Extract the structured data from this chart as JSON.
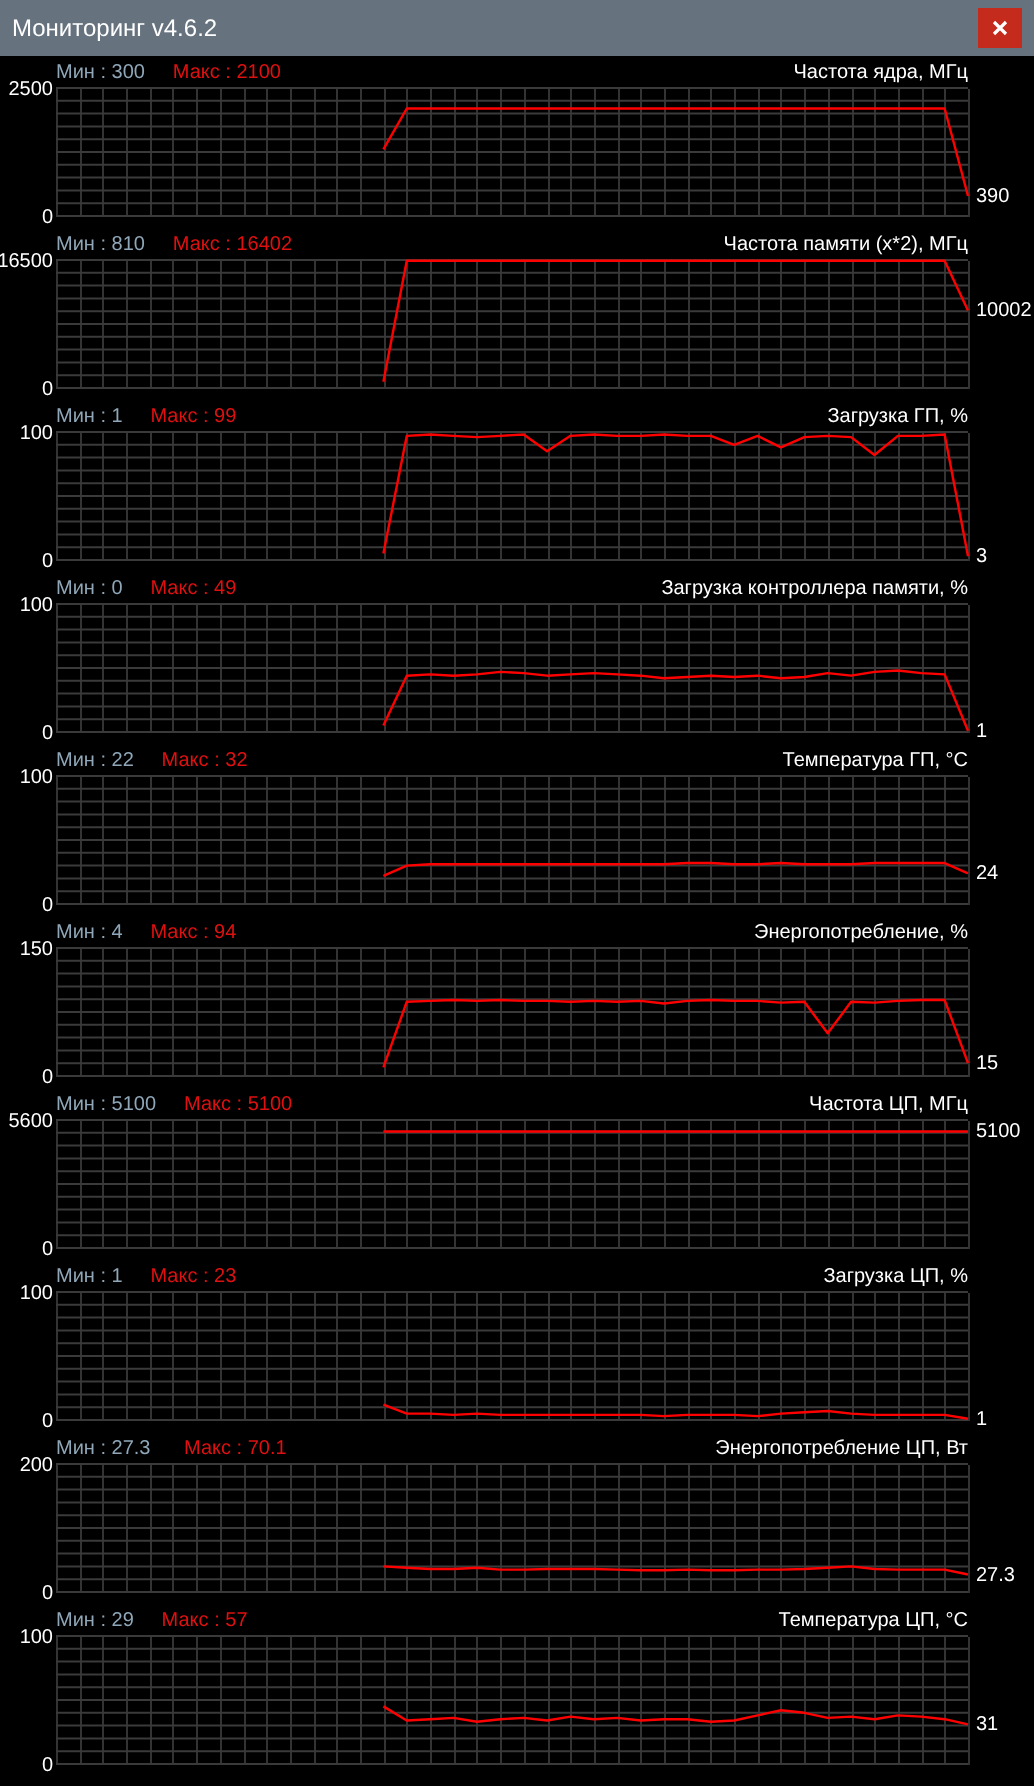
{
  "chart_data": [
    {
      "type": "other",
      "title": "Мониторинг v4.6.2"
    },
    {
      "type": "line",
      "title": "Частота ядра, МГц",
      "categories": [
        null,
        null,
        null,
        null,
        null,
        null,
        null,
        null,
        null,
        null,
        null,
        null,
        null,
        null,
        null,
        null,
        null,
        null,
        null,
        null,
        null,
        null,
        null,
        null,
        null,
        null,
        null,
        null,
        null,
        null,
        null,
        null,
        null,
        null,
        null,
        null,
        null,
        null,
        null,
        null
      ],
      "series": [
        {
          "color": "#ff0000",
          "values": [
            null,
            null,
            null,
            null,
            null,
            null,
            null,
            null,
            null,
            null,
            null,
            null,
            null,
            null,
            1300,
            2100,
            2100,
            2100,
            2100,
            2100,
            2100,
            2100,
            2100,
            2100,
            2100,
            2100,
            2100,
            2100,
            2100,
            2100,
            2100,
            2100,
            2100,
            2100,
            2100,
            2100,
            2100,
            2100,
            2100,
            390
          ]
        }
      ],
      "ylim": [
        0,
        2500
      ],
      "yticks": [
        0,
        {
          "value": 250,
          "label": null
        },
        {
          "value": 500,
          "label": null
        },
        {
          "value": 750,
          "label": null
        },
        {
          "value": 1000,
          "label": null
        },
        {
          "value": 1250,
          "label": null
        },
        {
          "value": 1500,
          "label": null
        },
        {
          "value": 1750,
          "label": null
        },
        {
          "value": 2000,
          "label": null
        },
        {
          "value": 2250,
          "label": null
        },
        2500
      ],
      "grid": true,
      "tick_labels": "y",
      "annotations": [
        "Мин : 300",
        "Макс : 2100",
        "390"
      ]
    },
    {
      "type": "line",
      "title": "Частота памяти (x*2), МГц",
      "categories": [
        null,
        null,
        null,
        null,
        null,
        null,
        null,
        null,
        null,
        null,
        null,
        null,
        null,
        null,
        null,
        null,
        null,
        null,
        null,
        null,
        null,
        null,
        null,
        null,
        null,
        null,
        null,
        null,
        null,
        null,
        null,
        null,
        null,
        null,
        null,
        null,
        null,
        null,
        null,
        null
      ],
      "series": [
        {
          "color": "#ff0000",
          "values": [
            null,
            null,
            null,
            null,
            null,
            null,
            null,
            null,
            null,
            null,
            null,
            null,
            null,
            null,
            810,
            16402,
            16402,
            16402,
            16402,
            16402,
            16402,
            16402,
            16402,
            16402,
            16402,
            16402,
            16402,
            16402,
            16402,
            16402,
            16402,
            16402,
            16402,
            16402,
            16402,
            16402,
            16402,
            16402,
            16402,
            10002
          ]
        }
      ],
      "ylim": [
        0,
        16500
      ],
      "yticks": [
        0,
        {
          "value": 1650,
          "label": null
        },
        {
          "value": 3300,
          "label": null
        },
        {
          "value": 4950,
          "label": null
        },
        {
          "value": 6600,
          "label": null
        },
        {
          "value": 8250,
          "label": null
        },
        {
          "value": 9900,
          "label": null
        },
        {
          "value": 11550,
          "label": null
        },
        {
          "value": 13200,
          "label": null
        },
        {
          "value": 14850,
          "label": null
        },
        16500
      ],
      "grid": true,
      "tick_labels": "y",
      "annotations": [
        "Мин : 810",
        "Макс : 16402",
        "10002"
      ]
    },
    {
      "type": "line",
      "title": "Загрузка ГП, %",
      "categories": [
        null,
        null,
        null,
        null,
        null,
        null,
        null,
        null,
        null,
        null,
        null,
        null,
        null,
        null,
        null,
        null,
        null,
        null,
        null,
        null,
        null,
        null,
        null,
        null,
        null,
        null,
        null,
        null,
        null,
        null,
        null,
        null,
        null,
        null,
        null,
        null,
        null,
        null,
        null,
        null
      ],
      "series": [
        {
          "color": "#ff0000",
          "values": [
            null,
            null,
            null,
            null,
            null,
            null,
            null,
            null,
            null,
            null,
            null,
            null,
            null,
            null,
            5,
            97,
            98,
            97,
            96,
            97,
            98,
            85,
            97,
            98,
            97,
            97,
            98,
            97,
            97,
            90,
            97,
            88,
            96,
            97,
            96,
            82,
            97,
            97,
            98,
            3
          ]
        }
      ],
      "ylim": [
        0,
        100
      ],
      "yticks": [
        0,
        {
          "value": 10,
          "label": null
        },
        {
          "value": 20,
          "label": null
        },
        {
          "value": 30,
          "label": null
        },
        {
          "value": 40,
          "label": null
        },
        {
          "value": 50,
          "label": null
        },
        {
          "value": 60,
          "label": null
        },
        {
          "value": 70,
          "label": null
        },
        {
          "value": 80,
          "label": null
        },
        {
          "value": 90,
          "label": null
        },
        100
      ],
      "grid": true,
      "tick_labels": "y",
      "annotations": [
        "Мин : 1",
        "Макс : 99",
        "3"
      ]
    },
    {
      "type": "line",
      "title": "Загрузка контроллера памяти, %",
      "categories": [
        null,
        null,
        null,
        null,
        null,
        null,
        null,
        null,
        null,
        null,
        null,
        null,
        null,
        null,
        null,
        null,
        null,
        null,
        null,
        null,
        null,
        null,
        null,
        null,
        null,
        null,
        null,
        null,
        null,
        null,
        null,
        null,
        null,
        null,
        null,
        null,
        null,
        null,
        null,
        null
      ],
      "series": [
        {
          "color": "#ff0000",
          "values": [
            null,
            null,
            null,
            null,
            null,
            null,
            null,
            null,
            null,
            null,
            null,
            null,
            null,
            null,
            5,
            44,
            45,
            44,
            45,
            47,
            46,
            44,
            45,
            46,
            45,
            44,
            42,
            43,
            44,
            43,
            44,
            42,
            43,
            46,
            44,
            47,
            48,
            46,
            45,
            1
          ]
        }
      ],
      "ylim": [
        0,
        100
      ],
      "yticks": [
        0,
        {
          "value": 10,
          "label": null
        },
        {
          "value": 20,
          "label": null
        },
        {
          "value": 30,
          "label": null
        },
        {
          "value": 40,
          "label": null
        },
        {
          "value": 50,
          "label": null
        },
        {
          "value": 60,
          "label": null
        },
        {
          "value": 70,
          "label": null
        },
        {
          "value": 80,
          "label": null
        },
        {
          "value": 90,
          "label": null
        },
        100
      ],
      "grid": true,
      "tick_labels": "y",
      "annotations": [
        "Мин : 0",
        "Макс : 49",
        "1"
      ]
    },
    {
      "type": "line",
      "title": "Температура ГП, °C",
      "categories": [
        null,
        null,
        null,
        null,
        null,
        null,
        null,
        null,
        null,
        null,
        null,
        null,
        null,
        null,
        null,
        null,
        null,
        null,
        null,
        null,
        null,
        null,
        null,
        null,
        null,
        null,
        null,
        null,
        null,
        null,
        null,
        null,
        null,
        null,
        null,
        null,
        null,
        null,
        null,
        null
      ],
      "series": [
        {
          "color": "#ff0000",
          "values": [
            null,
            null,
            null,
            null,
            null,
            null,
            null,
            null,
            null,
            null,
            null,
            null,
            null,
            null,
            22,
            30,
            31,
            31,
            31,
            31,
            31,
            31,
            31,
            31,
            31,
            31,
            31,
            32,
            32,
            31,
            31,
            32,
            31,
            31,
            31,
            32,
            32,
            32,
            32,
            24
          ]
        }
      ],
      "ylim": [
        0,
        100
      ],
      "yticks": [
        0,
        {
          "value": 10,
          "label": null
        },
        {
          "value": 20,
          "label": null
        },
        {
          "value": 30,
          "label": null
        },
        {
          "value": 40,
          "label": null
        },
        {
          "value": 50,
          "label": null
        },
        {
          "value": 60,
          "label": null
        },
        {
          "value": 70,
          "label": null
        },
        {
          "value": 80,
          "label": null
        },
        {
          "value": 90,
          "label": null
        },
        100
      ],
      "grid": true,
      "tick_labels": "y",
      "annotations": [
        "Мин : 22",
        "Макс : 32",
        "24"
      ]
    },
    {
      "type": "line",
      "title": "Энергопотребление, %",
      "categories": [
        null,
        null,
        null,
        null,
        null,
        null,
        null,
        null,
        null,
        null,
        null,
        null,
        null,
        null,
        null,
        null,
        null,
        null,
        null,
        null,
        null,
        null,
        null,
        null,
        null,
        null,
        null,
        null,
        null,
        null,
        null,
        null,
        null,
        null,
        null,
        null,
        null,
        null,
        null,
        null
      ],
      "series": [
        {
          "color": "#ff0000",
          "values": [
            null,
            null,
            null,
            null,
            null,
            null,
            null,
            null,
            null,
            null,
            null,
            null,
            null,
            null,
            10,
            87,
            88,
            89,
            88,
            89,
            88,
            88,
            87,
            88,
            87,
            88,
            85,
            88,
            89,
            88,
            88,
            86,
            87,
            50,
            87,
            86,
            88,
            89,
            89,
            15
          ]
        }
      ],
      "ylim": [
        0,
        150
      ],
      "yticks": [
        0,
        {
          "value": 15,
          "label": null
        },
        {
          "value": 30,
          "label": null
        },
        {
          "value": 45,
          "label": null
        },
        {
          "value": 60,
          "label": null
        },
        {
          "value": 75,
          "label": null
        },
        {
          "value": 90,
          "label": null
        },
        {
          "value": 105,
          "label": null
        },
        {
          "value": 120,
          "label": null
        },
        {
          "value": 135,
          "label": null
        },
        150
      ],
      "grid": true,
      "tick_labels": "y",
      "annotations": [
        "Мин : 4",
        "Макс : 94",
        "15"
      ]
    },
    {
      "type": "line",
      "title": "Частота ЦП, МГц",
      "categories": [
        null,
        null,
        null,
        null,
        null,
        null,
        null,
        null,
        null,
        null,
        null,
        null,
        null,
        null,
        null,
        null,
        null,
        null,
        null,
        null,
        null,
        null,
        null,
        null,
        null,
        null,
        null,
        null,
        null,
        null,
        null,
        null,
        null,
        null,
        null,
        null,
        null,
        null,
        null,
        null
      ],
      "series": [
        {
          "color": "#ff0000",
          "values": [
            null,
            null,
            null,
            null,
            null,
            null,
            null,
            null,
            null,
            null,
            null,
            null,
            null,
            null,
            5100,
            5100,
            5100,
            5100,
            5100,
            5100,
            5100,
            5100,
            5100,
            5100,
            5100,
            5100,
            5100,
            5100,
            5100,
            5100,
            5100,
            5100,
            5100,
            5100,
            5100,
            5100,
            5100,
            5100,
            5100,
            5100
          ]
        }
      ],
      "ylim": [
        0,
        5600
      ],
      "yticks": [
        0,
        {
          "value": 560,
          "label": null
        },
        {
          "value": 1120,
          "label": null
        },
        {
          "value": 1680,
          "label": null
        },
        {
          "value": 2240,
          "label": null
        },
        {
          "value": 2800,
          "label": null
        },
        {
          "value": 3360,
          "label": null
        },
        {
          "value": 3920,
          "label": null
        },
        {
          "value": 4480,
          "label": null
        },
        {
          "value": 5040,
          "label": null
        },
        5600
      ],
      "grid": true,
      "tick_labels": "y",
      "annotations": [
        "Мин : 5100",
        "Макс : 5100",
        "5100"
      ]
    },
    {
      "type": "line",
      "title": "Загрузка ЦП, %",
      "categories": [
        null,
        null,
        null,
        null,
        null,
        null,
        null,
        null,
        null,
        null,
        null,
        null,
        null,
        null,
        null,
        null,
        null,
        null,
        null,
        null,
        null,
        null,
        null,
        null,
        null,
        null,
        null,
        null,
        null,
        null,
        null,
        null,
        null,
        null,
        null,
        null,
        null,
        null,
        null,
        null
      ],
      "series": [
        {
          "color": "#ff0000",
          "values": [
            null,
            null,
            null,
            null,
            null,
            null,
            null,
            null,
            null,
            null,
            null,
            null,
            null,
            null,
            12,
            5,
            5,
            4,
            5,
            4,
            4,
            4,
            4,
            4,
            4,
            4,
            3,
            4,
            4,
            4,
            3,
            5,
            6,
            7,
            5,
            4,
            4,
            4,
            4,
            1
          ]
        }
      ],
      "ylim": [
        0,
        100
      ],
      "yticks": [
        0,
        {
          "value": 10,
          "label": null
        },
        {
          "value": 20,
          "label": null
        },
        {
          "value": 30,
          "label": null
        },
        {
          "value": 40,
          "label": null
        },
        {
          "value": 50,
          "label": null
        },
        {
          "value": 60,
          "label": null
        },
        {
          "value": 70,
          "label": null
        },
        {
          "value": 80,
          "label": null
        },
        {
          "value": 90,
          "label": null
        },
        100
      ],
      "grid": true,
      "tick_labels": "y",
      "annotations": [
        "Мин : 1",
        "Макс : 23",
        "1"
      ]
    },
    {
      "type": "line",
      "title": "Энергопотребление ЦП, Вт",
      "categories": [
        null,
        null,
        null,
        null,
        null,
        null,
        null,
        null,
        null,
        null,
        null,
        null,
        null,
        null,
        null,
        null,
        null,
        null,
        null,
        null,
        null,
        null,
        null,
        null,
        null,
        null,
        null,
        null,
        null,
        null,
        null,
        null,
        null,
        null,
        null,
        null,
        null,
        null,
        null,
        null
      ],
      "series": [
        {
          "color": "#ff0000",
          "values": [
            null,
            null,
            null,
            null,
            null,
            null,
            null,
            null,
            null,
            null,
            null,
            null,
            null,
            null,
            40,
            38,
            36,
            36,
            38,
            35,
            35,
            36,
            36,
            36,
            35,
            34,
            34,
            35,
            34,
            34,
            35,
            35,
            36,
            38,
            40,
            36,
            35,
            35,
            35,
            27.3
          ]
        }
      ],
      "ylim": [
        0,
        200
      ],
      "yticks": [
        0,
        {
          "value": 20,
          "label": null
        },
        {
          "value": 40,
          "label": null
        },
        {
          "value": 60,
          "label": null
        },
        {
          "value": 80,
          "label": null
        },
        {
          "value": 100,
          "label": null
        },
        {
          "value": 120,
          "label": null
        },
        {
          "value": 140,
          "label": null
        },
        {
          "value": 160,
          "label": null
        },
        {
          "value": 180,
          "label": null
        },
        200
      ],
      "grid": true,
      "tick_labels": "y",
      "annotations": [
        "Мин : 27.3",
        "Макс : 70.1",
        "27.3"
      ]
    },
    {
      "type": "line",
      "title": "Температура ЦП, °C",
      "categories": [
        null,
        null,
        null,
        null,
        null,
        null,
        null,
        null,
        null,
        null,
        null,
        null,
        null,
        null,
        null,
        null,
        null,
        null,
        null,
        null,
        null,
        null,
        null,
        null,
        null,
        null,
        null,
        null,
        null,
        null,
        null,
        null,
        null,
        null,
        null,
        null,
        null,
        null,
        null,
        null
      ],
      "series": [
        {
          "color": "#ff0000",
          "values": [
            null,
            null,
            null,
            null,
            null,
            null,
            null,
            null,
            null,
            null,
            null,
            null,
            null,
            null,
            45,
            34,
            35,
            36,
            33,
            35,
            36,
            34,
            37,
            35,
            36,
            34,
            35,
            35,
            33,
            34,
            38,
            42,
            40,
            36,
            37,
            35,
            38,
            37,
            35,
            31
          ]
        }
      ],
      "ylim": [
        0,
        100
      ],
      "yticks": [
        0,
        {
          "value": 10,
          "label": null
        },
        {
          "value": 20,
          "label": null
        },
        {
          "value": 30,
          "label": null
        },
        {
          "value": 40,
          "label": null
        },
        {
          "value": 50,
          "label": null
        },
        {
          "value": 60,
          "label": null
        },
        {
          "value": 70,
          "label": null
        },
        {
          "value": 80,
          "label": null
        },
        {
          "value": 90,
          "label": null
        },
        100
      ],
      "grid": true,
      "tick_labels": "y",
      "annotations": [
        "Мин : 29",
        "Макс : 57",
        "31"
      ]
    }
  ]
}
